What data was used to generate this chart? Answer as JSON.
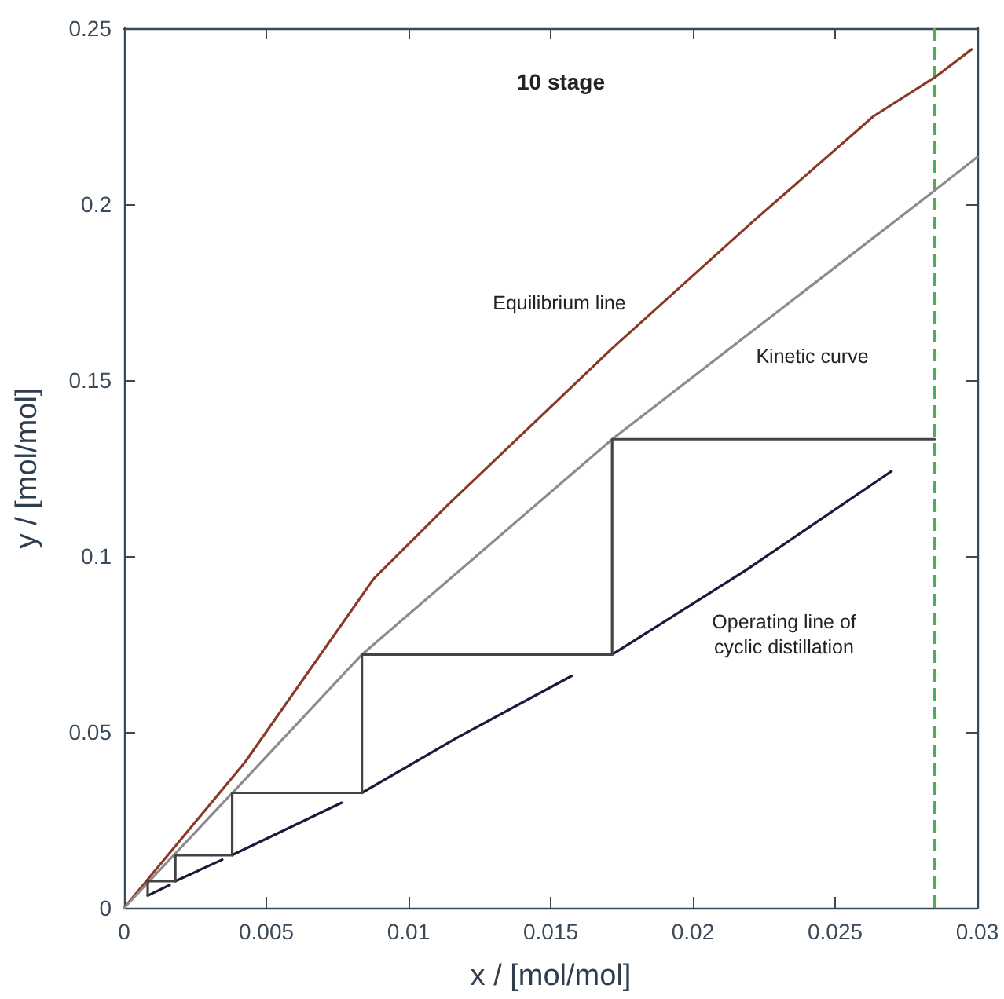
{
  "chart_data": {
    "type": "line",
    "title": "10 stage",
    "xlabel": "x / [mol/mol]",
    "ylabel": "y / [mol/mol]",
    "xlim": [
      0,
      0.03
    ],
    "xticks": [
      0,
      0.005,
      0.01,
      0.015,
      0.02,
      0.025,
      0.03
    ],
    "ylim": [
      0,
      0.25
    ],
    "yticks": [
      0,
      0.05,
      0.1,
      0.15,
      0.2,
      0.25
    ],
    "grid": false,
    "marker": "none",
    "series": [
      {
        "color": "#8b3a2a",
        "x": [
          0,
          0.00425,
          0.00877,
          0.01144,
          0.01716,
          0.0221,
          0.02635,
          0.0285,
          0.0298
        ],
        "values": [
          0,
          0.0414,
          0.0935,
          0.115,
          0.159,
          0.195,
          0.225,
          0.236,
          0.244
        ]
      },
      {
        "color": "#8c8c8c",
        "x": [
          0,
          0.00376,
          0.00836,
          0.01716,
          0.0286,
          0.03
        ],
        "values": [
          0,
          0.0323,
          0.072,
          0.1332,
          0.2045,
          0.2134
        ]
      },
      {
        "color": "#1a1a3a",
        "x": [
          0.00083,
          0.0016,
          0.0017,
          0.0018,
          0.00345,
          0.0036,
          0.0038,
          0.00765,
          0.008,
          0.00836,
          0.01163,
          0.01573,
          0.0165,
          0.01716,
          0.02187,
          0.02698
        ],
        "values": [
          0.0035,
          0.0065,
          null,
          0.0076,
          0.0137,
          null,
          0.015,
          0.0299,
          null,
          0.0327,
          0.048,
          0.0659,
          null,
          0.072,
          0.096,
          0.1241
        ]
      },
      {
        "color": "#444444",
        "x": [
          0.0285,
          0.01716,
          0.01716,
          0.00836,
          0.00836,
          0.0038,
          0.0038,
          0.0018,
          0.0018,
          0.00083,
          0.00083
        ],
        "values": [
          0.1332,
          0.1332,
          0.072,
          0.072,
          0.0327,
          0.0327,
          0.015,
          0.015,
          0.0076,
          0.0076,
          0.0035
        ]
      }
    ],
    "ref_lines": [
      {
        "axis": "x",
        "value": 0.0285,
        "color": "#4caf50",
        "line_style": "dashed"
      }
    ],
    "annotations": [
      "Equilibrium line",
      "Kinetic curve",
      "Operating line of\ncyclic distillation"
    ]
  }
}
